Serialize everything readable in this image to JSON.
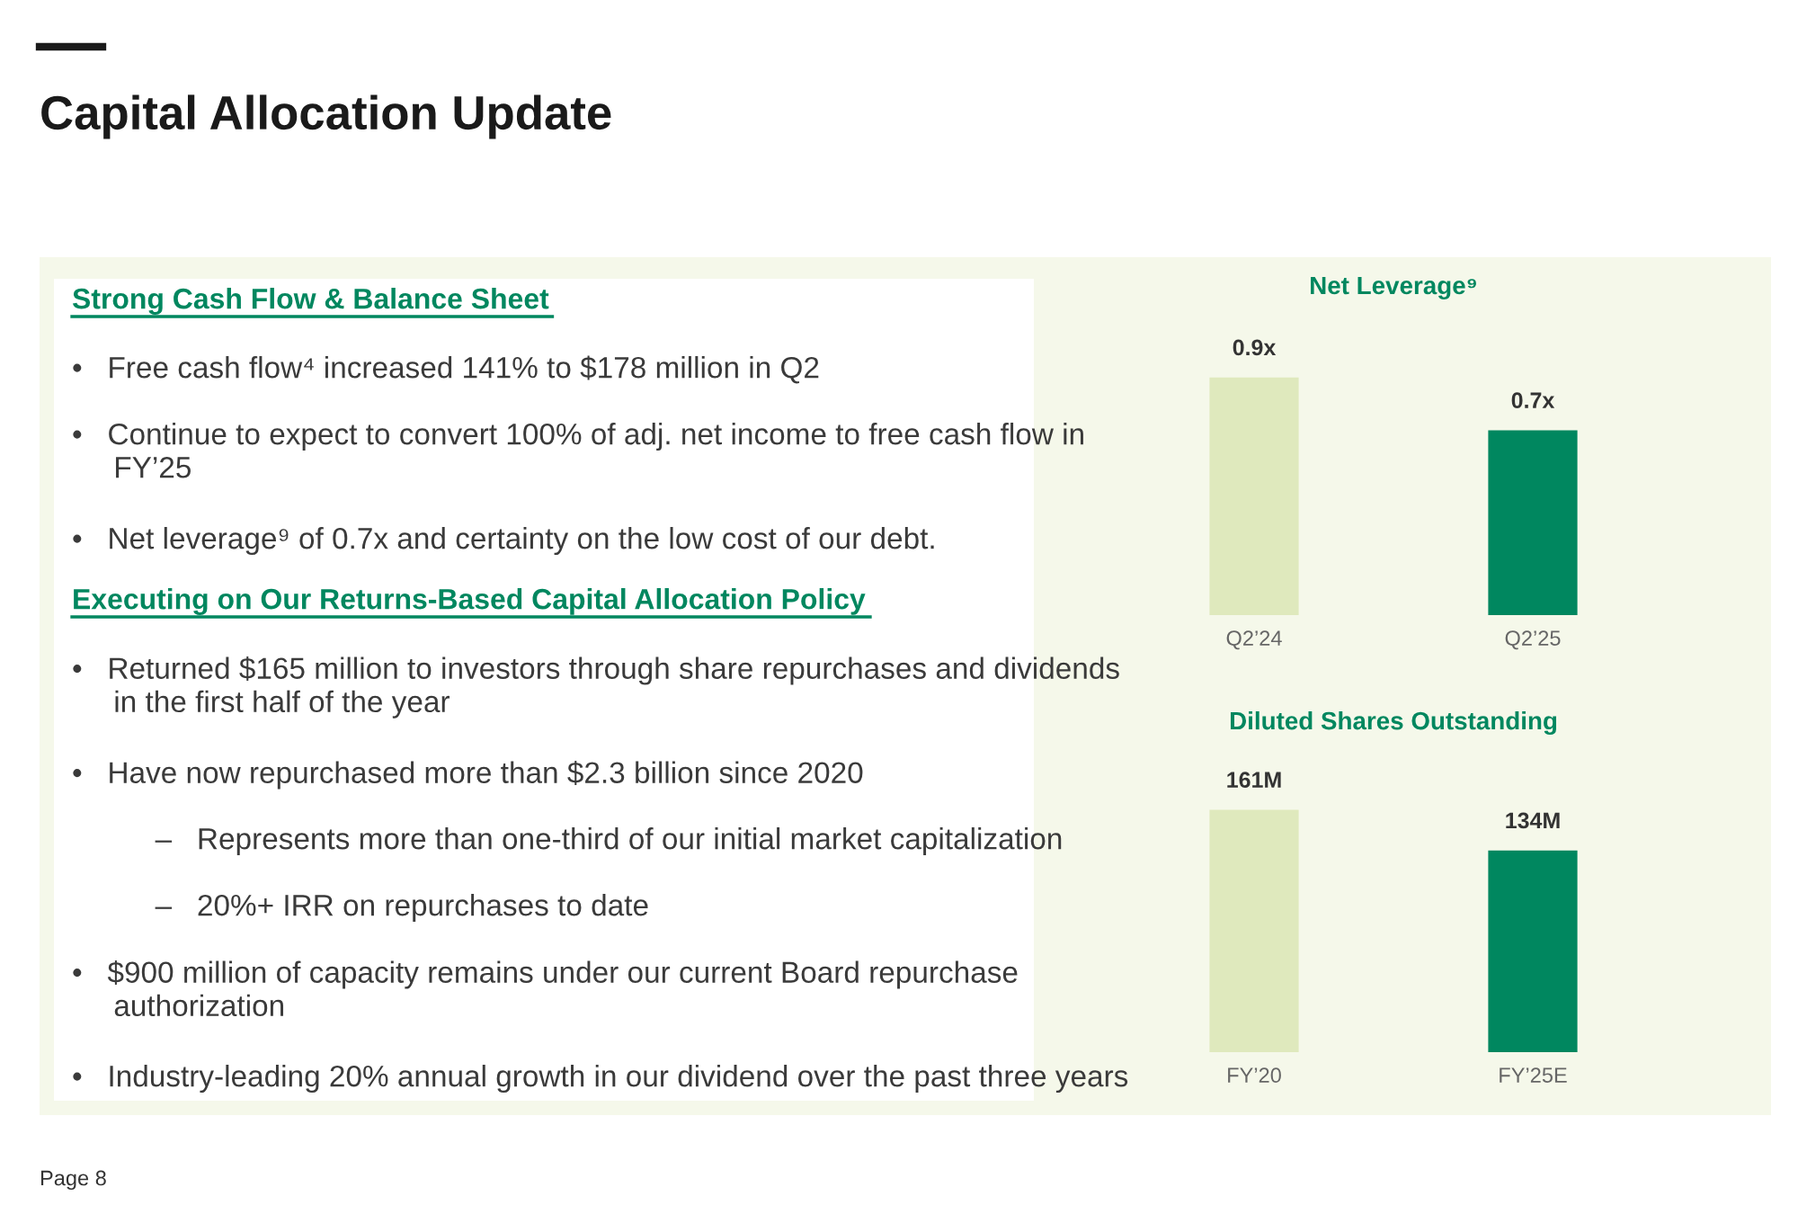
{
  "chart_data": [
    {
      "type": "other",
      "title": "Capital Allocation Update",
      "annotations": [
        "Page 8"
      ]
    },
    {
      "type": "other",
      "title": "Strong Cash Flow & Balance Sheet",
      "annotations": [
        "•   Free cash flow⁴ increased 141% to $178 million in Q2",
        "•   Continue to expect to convert 100% of adj. net income to free cash flow in\n     FY’25",
        "•   Net leverage⁹ of 0.7x and certainty on the low cost of our debt."
      ]
    },
    {
      "type": "other",
      "title": "Executing on Our Returns-Based Capital Allocation Policy",
      "annotations": [
        "•   Returned $165 million to investors through share repurchases and dividends\n     in the first half of the year",
        "•   Have now repurchased more than $2.3 billion since 2020",
        "          –   Represents more than one-third of our initial market capitalization",
        "          –   20%+ IRR on repurchases to date",
        "•   $900 million of capacity remains under our current Board repurchase\n     authorization",
        "•   Industry-leading 20% annual growth in our dividend over the past three years"
      ]
    },
    {
      "type": "bar",
      "title": "Net Leverage⁹",
      "categories": [
        "Q2’24",
        "Q2’25"
      ],
      "values": [
        0.9,
        0.7
      ],
      "colors": [
        "#dfe9bd",
        "#00875f"
      ],
      "value_labels": [
        "0.9x",
        "0.7x"
      ]
    },
    {
      "type": "bar",
      "title": "Diluted Shares Outstanding",
      "categories": [
        "FY’20",
        "FY’25E"
      ],
      "values": [
        161,
        134
      ],
      "colors": [
        "#dfe9bd",
        "#00875f"
      ],
      "value_labels": [
        "161M",
        "134M"
      ]
    }
  ]
}
